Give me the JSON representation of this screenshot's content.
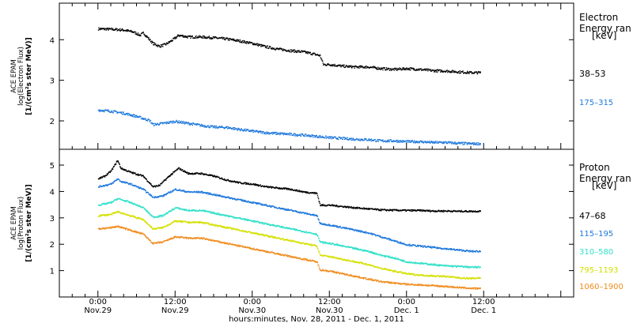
{
  "chart_data": [
    {
      "type": "line",
      "ylabel": [
        "ACE EPAM",
        "log(Electron Flux)",
        "[1/(cm²s ster MeV)]"
      ],
      "ylim": [
        1.3,
        4.9
      ],
      "yticks": [
        2,
        3,
        4
      ],
      "legend_title": [
        "Electron",
        "Energy ran"
      ],
      "legend_unit": "[keV]",
      "legend_placement": "right",
      "series": [
        {
          "name": "38–53",
          "color": "#000000",
          "points": [
            [
              0.0,
              4.28
            ],
            [
              2.0,
              4.27
            ],
            [
              4.0,
              4.25
            ],
            [
              5.5,
              4.2
            ],
            [
              6.5,
              4.12
            ],
            [
              7.0,
              4.18
            ],
            [
              8.5,
              3.92
            ],
            [
              9.5,
              3.85
            ],
            [
              10.5,
              3.9
            ],
            [
              11.5,
              4.0
            ],
            [
              12.5,
              4.12
            ],
            [
              14.0,
              4.08
            ],
            [
              16.0,
              4.08
            ],
            [
              18.0,
              4.06
            ],
            [
              20.0,
              4.03
            ],
            [
              22.0,
              3.98
            ],
            [
              24.0,
              3.92
            ],
            [
              26.0,
              3.84
            ],
            [
              28.0,
              3.78
            ],
            [
              30.0,
              3.74
            ],
            [
              32.0,
              3.71
            ],
            [
              33.5,
              3.66
            ],
            [
              34.5,
              3.62
            ],
            [
              35.0,
              3.4
            ],
            [
              36.0,
              3.4
            ],
            [
              38.0,
              3.36
            ],
            [
              40.0,
              3.34
            ],
            [
              42.0,
              3.34
            ],
            [
              44.0,
              3.3
            ],
            [
              46.0,
              3.28
            ],
            [
              48.0,
              3.3
            ],
            [
              50.0,
              3.28
            ],
            [
              52.0,
              3.25
            ],
            [
              54.0,
              3.24
            ],
            [
              56.0,
              3.22
            ],
            [
              58.0,
              3.2
            ],
            [
              59.5,
              3.2
            ]
          ]
        },
        {
          "name": "175–315",
          "color": "#1e78dc",
          "points": [
            [
              0.0,
              2.28
            ],
            [
              2.0,
              2.25
            ],
            [
              4.0,
              2.2
            ],
            [
              6.0,
              2.12
            ],
            [
              8.0,
              2.02
            ],
            [
              8.5,
              1.92
            ],
            [
              10.0,
              1.95
            ],
            [
              12.0,
              2.0
            ],
            [
              14.0,
              1.95
            ],
            [
              16.0,
              1.9
            ],
            [
              18.0,
              1.86
            ],
            [
              20.0,
              1.85
            ],
            [
              22.0,
              1.8
            ],
            [
              24.0,
              1.76
            ],
            [
              26.0,
              1.72
            ],
            [
              28.0,
              1.7
            ],
            [
              30.0,
              1.68
            ],
            [
              32.0,
              1.66
            ],
            [
              34.0,
              1.63
            ],
            [
              36.0,
              1.6
            ],
            [
              38.0,
              1.58
            ],
            [
              40.0,
              1.56
            ],
            [
              42.0,
              1.55
            ],
            [
              44.0,
              1.52
            ],
            [
              46.0,
              1.52
            ],
            [
              48.0,
              1.5
            ],
            [
              50.0,
              1.5
            ],
            [
              52.0,
              1.48
            ],
            [
              54.0,
              1.48
            ],
            [
              56.0,
              1.46
            ],
            [
              58.0,
              1.45
            ],
            [
              59.5,
              1.45
            ]
          ]
        }
      ]
    },
    {
      "type": "line",
      "ylabel": [
        "ACE EPAM",
        "log(Proton Flux)",
        "[1/(cm²s ster MeV)]"
      ],
      "ylim": [
        0.0,
        5.6
      ],
      "yticks": [
        1,
        2,
        3,
        4,
        5
      ],
      "legend_title": [
        "Proton",
        "Energy ran"
      ],
      "legend_unit": "[keV]",
      "legend_placement": "right",
      "series": [
        {
          "name": "47–68",
          "color": "#000000",
          "points": [
            [
              0.0,
              4.5
            ],
            [
              1.0,
              4.6
            ],
            [
              2.0,
              4.8
            ],
            [
              3.0,
              5.2
            ],
            [
              3.5,
              4.9
            ],
            [
              5.0,
              4.75
            ],
            [
              7.0,
              4.6
            ],
            [
              8.5,
              4.2
            ],
            [
              9.5,
              4.25
            ],
            [
              11.0,
              4.6
            ],
            [
              12.5,
              4.9
            ],
            [
              14.0,
              4.7
            ],
            [
              16.0,
              4.7
            ],
            [
              18.0,
              4.6
            ],
            [
              20.0,
              4.45
            ],
            [
              22.0,
              4.35
            ],
            [
              24.0,
              4.3
            ],
            [
              26.0,
              4.2
            ],
            [
              28.0,
              4.15
            ],
            [
              30.0,
              4.1
            ],
            [
              32.0,
              4.0
            ],
            [
              34.0,
              3.95
            ],
            [
              34.5,
              3.5
            ],
            [
              36.0,
              3.5
            ],
            [
              38.0,
              3.45
            ],
            [
              40.0,
              3.4
            ],
            [
              42.0,
              3.36
            ],
            [
              44.0,
              3.32
            ],
            [
              46.0,
              3.31
            ],
            [
              48.0,
              3.3
            ],
            [
              50.0,
              3.3
            ],
            [
              52.0,
              3.28
            ],
            [
              54.0,
              3.28
            ],
            [
              56.0,
              3.27
            ],
            [
              58.0,
              3.27
            ],
            [
              59.5,
              3.27
            ]
          ]
        },
        {
          "name": "115–195",
          "color": "#1e78dc",
          "points": [
            [
              0.0,
              4.2
            ],
            [
              2.0,
              4.3
            ],
            [
              3.0,
              4.5
            ],
            [
              3.5,
              4.4
            ],
            [
              5.0,
              4.3
            ],
            [
              7.0,
              4.1
            ],
            [
              8.5,
              3.8
            ],
            [
              10.0,
              3.85
            ],
            [
              12.0,
              4.1
            ],
            [
              14.0,
              4.0
            ],
            [
              16.0,
              4.0
            ],
            [
              18.0,
              3.9
            ],
            [
              20.0,
              3.8
            ],
            [
              22.0,
              3.7
            ],
            [
              24.0,
              3.6
            ],
            [
              26.0,
              3.5
            ],
            [
              28.0,
              3.4
            ],
            [
              30.0,
              3.3
            ],
            [
              32.0,
              3.2
            ],
            [
              34.0,
              3.1
            ],
            [
              34.5,
              2.8
            ],
            [
              36.0,
              2.75
            ],
            [
              38.0,
              2.65
            ],
            [
              40.0,
              2.55
            ],
            [
              42.0,
              2.45
            ],
            [
              44.0,
              2.3
            ],
            [
              46.0,
              2.15
            ],
            [
              48.0,
              2.0
            ],
            [
              50.0,
              1.95
            ],
            [
              52.0,
              1.9
            ],
            [
              54.0,
              1.85
            ],
            [
              56.0,
              1.8
            ],
            [
              58.0,
              1.75
            ],
            [
              59.5,
              1.75
            ]
          ]
        },
        {
          "name": "310–580",
          "color": "#30e0c8",
          "points": [
            [
              0.0,
              3.5
            ],
            [
              2.0,
              3.6
            ],
            [
              3.0,
              3.75
            ],
            [
              5.0,
              3.6
            ],
            [
              7.0,
              3.4
            ],
            [
              8.5,
              3.05
            ],
            [
              10.0,
              3.1
            ],
            [
              12.0,
              3.4
            ],
            [
              14.0,
              3.3
            ],
            [
              16.0,
              3.3
            ],
            [
              18.0,
              3.2
            ],
            [
              20.0,
              3.1
            ],
            [
              22.0,
              3.0
            ],
            [
              24.0,
              2.9
            ],
            [
              26.0,
              2.8
            ],
            [
              28.0,
              2.7
            ],
            [
              30.0,
              2.6
            ],
            [
              32.0,
              2.5
            ],
            [
              34.0,
              2.4
            ],
            [
              34.5,
              2.1
            ],
            [
              36.0,
              2.05
            ],
            [
              38.0,
              1.95
            ],
            [
              40.0,
              1.85
            ],
            [
              42.0,
              1.75
            ],
            [
              44.0,
              1.6
            ],
            [
              46.0,
              1.5
            ],
            [
              48.0,
              1.35
            ],
            [
              50.0,
              1.3
            ],
            [
              52.0,
              1.25
            ],
            [
              54.0,
              1.2
            ],
            [
              56.0,
              1.18
            ],
            [
              58.0,
              1.15
            ],
            [
              59.5,
              1.15
            ]
          ]
        },
        {
          "name": "795–1193",
          "color": "#d4e000",
          "points": [
            [
              0.0,
              3.1
            ],
            [
              2.0,
              3.15
            ],
            [
              3.0,
              3.25
            ],
            [
              5.0,
              3.1
            ],
            [
              7.0,
              2.95
            ],
            [
              8.5,
              2.6
            ],
            [
              10.0,
              2.65
            ],
            [
              12.0,
              2.9
            ],
            [
              14.0,
              2.85
            ],
            [
              16.0,
              2.85
            ],
            [
              18.0,
              2.75
            ],
            [
              20.0,
              2.65
            ],
            [
              22.0,
              2.55
            ],
            [
              24.0,
              2.45
            ],
            [
              26.0,
              2.35
            ],
            [
              28.0,
              2.25
            ],
            [
              30.0,
              2.15
            ],
            [
              32.0,
              2.05
            ],
            [
              34.0,
              1.95
            ],
            [
              34.5,
              1.6
            ],
            [
              36.0,
              1.55
            ],
            [
              38.0,
              1.45
            ],
            [
              40.0,
              1.35
            ],
            [
              42.0,
              1.25
            ],
            [
              44.0,
              1.1
            ],
            [
              46.0,
              1.0
            ],
            [
              48.0,
              0.9
            ],
            [
              50.0,
              0.85
            ],
            [
              52.0,
              0.82
            ],
            [
              54.0,
              0.8
            ],
            [
              56.0,
              0.75
            ],
            [
              58.0,
              0.72
            ],
            [
              59.5,
              0.75
            ]
          ]
        },
        {
          "name": "1060–1900",
          "color": "#f08c1e",
          "points": [
            [
              0.0,
              2.6
            ],
            [
              2.0,
              2.65
            ],
            [
              3.0,
              2.7
            ],
            [
              5.0,
              2.55
            ],
            [
              7.0,
              2.4
            ],
            [
              8.5,
              2.05
            ],
            [
              10.0,
              2.1
            ],
            [
              12.0,
              2.3
            ],
            [
              14.0,
              2.25
            ],
            [
              16.0,
              2.25
            ],
            [
              18.0,
              2.15
            ],
            [
              20.0,
              2.05
            ],
            [
              22.0,
              1.95
            ],
            [
              24.0,
              1.85
            ],
            [
              26.0,
              1.75
            ],
            [
              28.0,
              1.65
            ],
            [
              30.0,
              1.55
            ],
            [
              32.0,
              1.45
            ],
            [
              34.0,
              1.35
            ],
            [
              34.5,
              1.05
            ],
            [
              36.0,
              1.0
            ],
            [
              38.0,
              0.9
            ],
            [
              40.0,
              0.8
            ],
            [
              42.0,
              0.7
            ],
            [
              44.0,
              0.6
            ],
            [
              46.0,
              0.55
            ],
            [
              48.0,
              0.5
            ],
            [
              50.0,
              0.48
            ],
            [
              52.0,
              0.45
            ],
            [
              54.0,
              0.42
            ],
            [
              56.0,
              0.38
            ],
            [
              58.0,
              0.35
            ],
            [
              59.5,
              0.33
            ]
          ]
        }
      ]
    }
  ],
  "x_axis": {
    "xlim": [
      -6,
      74
    ],
    "ticks": [
      {
        "x": 0,
        "time": "0:00",
        "day": "Nov.29"
      },
      {
        "x": 12,
        "time": "12:00",
        "day": "Nov.29"
      },
      {
        "x": 24,
        "time": "0:00",
        "day": "Nov.30"
      },
      {
        "x": 36,
        "time": "12:00",
        "day": "Nov.30"
      },
      {
        "x": 48,
        "time": "0:00",
        "day": "Dec. 1"
      },
      {
        "x": 60,
        "time": "12:00",
        "day": "Dec. 1"
      }
    ],
    "xlabel": "hours:minutes, Nov. 28, 2011 - Dec. 1, 2011"
  }
}
